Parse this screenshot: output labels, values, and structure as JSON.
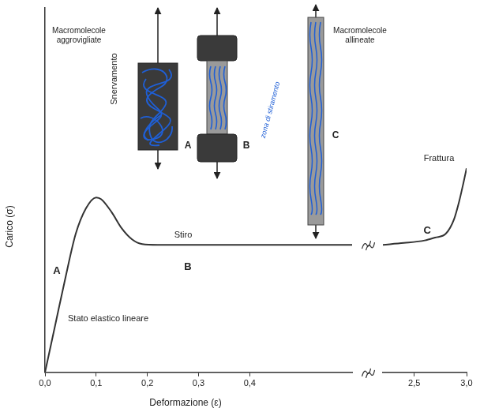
{
  "chart_data": [
    {
      "type": "line",
      "x_label": "Deformazione (ε)",
      "y_label": "Carico (σ)",
      "x": [
        0,
        0.02,
        0.04,
        0.06,
        0.08,
        0.1,
        0.11,
        0.13,
        0.15,
        0.17,
        0.19,
        0.22,
        0.3,
        0.4,
        0.5,
        0.6
      ],
      "values": [
        0,
        13,
        26,
        38,
        45,
        48,
        47.5,
        44,
        39.5,
        36.5,
        35.2,
        35,
        35,
        35,
        35,
        35
      ],
      "color": "#333333",
      "xlim": [
        0,
        0.6
      ],
      "xticks": [
        {
          "value": 0,
          "label": "0,0"
        },
        {
          "value": 0.1,
          "label": "0,1"
        },
        {
          "value": 0.2,
          "label": "0,2"
        },
        {
          "value": 0.3,
          "label": "0,3"
        },
        {
          "value": 0.4,
          "label": "0,4"
        }
      ],
      "ylim": [
        0,
        100
      ],
      "grid": false,
      "tick_labels": "x",
      "annotations": [
        "Snervamento",
        "A",
        "Stato elastico lineare",
        "Stiro",
        "B"
      ]
    },
    {
      "type": "line",
      "x": [
        2.2,
        2.4,
        2.6,
        2.7,
        2.8,
        2.88,
        2.93,
        2.97,
        3.0
      ],
      "values": [
        35,
        35.5,
        36.2,
        37,
        38,
        42,
        47,
        52,
        56
      ],
      "color": "#333333",
      "xlim": [
        2.2,
        3.0
      ],
      "xticks": [
        {
          "value": 2.5,
          "label": "2,5"
        },
        {
          "value": 3,
          "label": "3,0"
        }
      ],
      "ylim": [
        0,
        100
      ],
      "grid": false,
      "tick_labels": "x",
      "annotations": [
        "Frattura",
        "C"
      ]
    }
  ],
  "illustration": {
    "titles": [
      "Macromolecole aggrovigliate",
      "Macromolecole allineate"
    ],
    "stages": [
      "A",
      "B",
      "C"
    ],
    "handwritten": "zona di stiramento"
  }
}
